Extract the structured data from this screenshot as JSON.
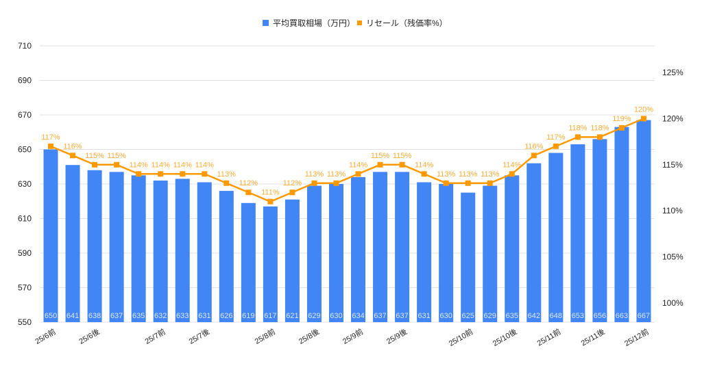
{
  "legend": {
    "bar_label": "平均買取相場（万円）",
    "line_label": "リセール（残価率%）"
  },
  "colors": {
    "bar": "#4285F4",
    "line": "#FF9900",
    "line_label": "#FFAA33",
    "grid": "#E0E0E0",
    "axis_text": "#222222",
    "bar_label": "#DCE8FD"
  },
  "chart_data": {
    "type": "bar+line",
    "title": "",
    "categories": [
      "25/6前",
      "",
      "25/6後",
      "",
      "",
      "25/7前",
      "",
      "25/7後",
      "",
      "",
      "25/8前",
      "",
      "25/8後",
      "",
      "25/9前",
      "",
      "25/9後",
      "",
      "",
      "25/10前",
      "",
      "25/10後",
      "",
      "25/11前",
      "",
      "25/11後",
      "",
      "25/12前"
    ],
    "x_labels_shown": [
      {
        "index": 0,
        "label": "25/6前"
      },
      {
        "index": 2,
        "label": "25/6後"
      },
      {
        "index": 5,
        "label": "25/7前"
      },
      {
        "index": 7,
        "label": "25/7後"
      },
      {
        "index": 10,
        "label": "25/8前"
      },
      {
        "index": 12,
        "label": "25/8後"
      },
      {
        "index": 14,
        "label": "25/9前"
      },
      {
        "index": 16,
        "label": "25/9後"
      },
      {
        "index": 19,
        "label": "25/10前"
      },
      {
        "index": 21,
        "label": "25/10後"
      },
      {
        "index": 23,
        "label": "25/11前"
      },
      {
        "index": 25,
        "label": "25/11後"
      },
      {
        "index": 27,
        "label": "25/12前"
      }
    ],
    "series": [
      {
        "name": "平均買取相場（万円）",
        "type": "bar",
        "axis": "left",
        "values": [
          650,
          641,
          638,
          637,
          635,
          632,
          633,
          631,
          626,
          619,
          617,
          621,
          629,
          630,
          634,
          637,
          637,
          631,
          630,
          625,
          629,
          635,
          642,
          648,
          653,
          656,
          663,
          667
        ]
      },
      {
        "name": "リセール（残価率%）",
        "type": "line",
        "axis": "right",
        "values": [
          117,
          116,
          115,
          115,
          114,
          114,
          114,
          114,
          113,
          112,
          111,
          112,
          113,
          113,
          114,
          115,
          115,
          114,
          113,
          113,
          113,
          114,
          116,
          117,
          118,
          118,
          119,
          120
        ]
      }
    ],
    "left_axis": {
      "ylim": [
        550,
        710
      ],
      "ticks": [
        550,
        570,
        590,
        610,
        630,
        650,
        670,
        690,
        710
      ]
    },
    "right_axis": {
      "ylim": [
        100,
        125
      ],
      "ticks": [
        "100%",
        "105%",
        "110%",
        "115%",
        "120%",
        "125%"
      ]
    },
    "grid": true,
    "legend_position": "top"
  }
}
